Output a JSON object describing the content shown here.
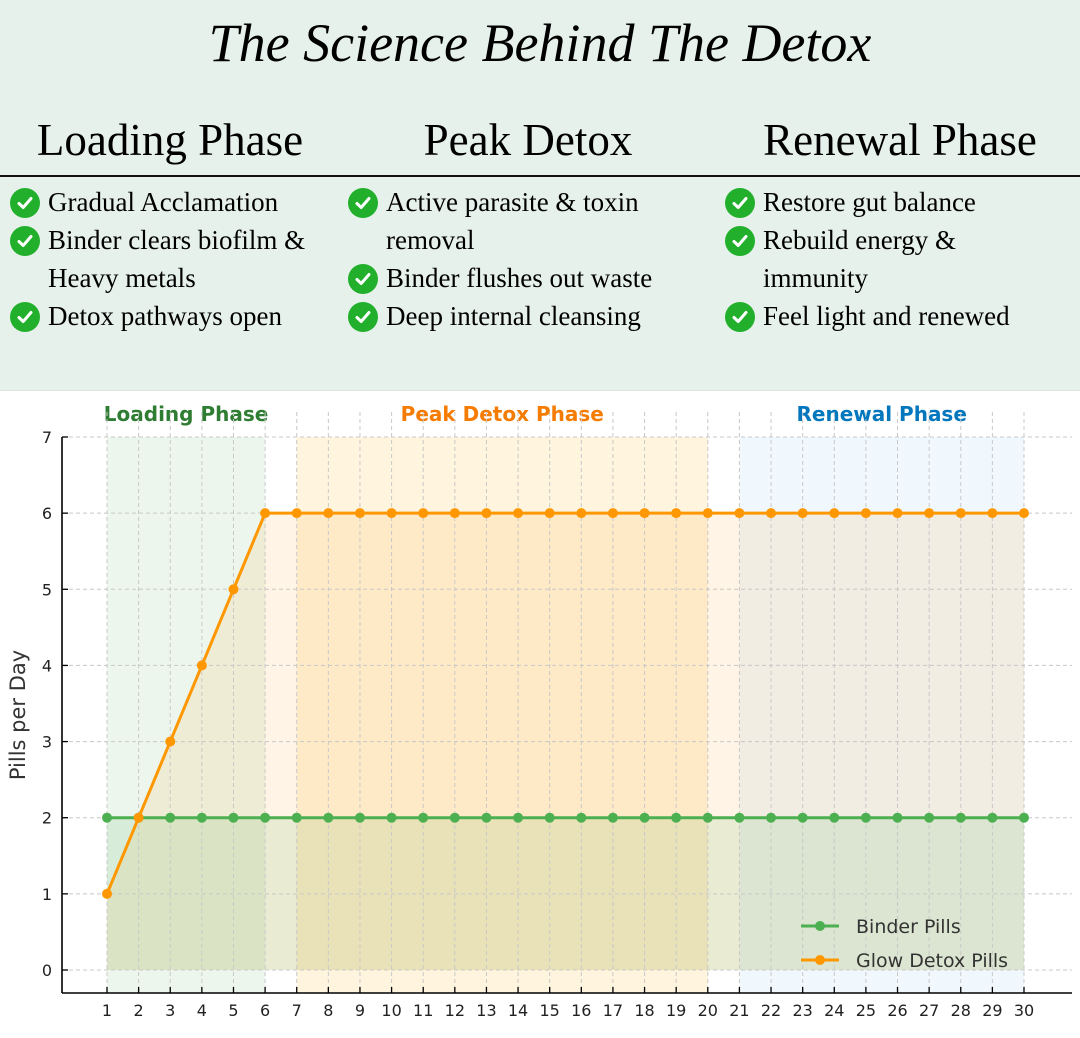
{
  "header": {
    "title": "The Science Behind The Detox",
    "phases": [
      {
        "heading": "Loading Phase",
        "items": [
          "Gradual Acclamation",
          "Binder clears biofilm & Heavy metals",
          "Detox pathways open"
        ]
      },
      {
        "heading": "Peak Detox",
        "items": [
          "Active parasite & toxin removal",
          "Binder flushes out waste",
          "Deep internal cleansing"
        ]
      },
      {
        "heading": "Renewal Phase",
        "items": [
          "Restore gut balance",
          "Rebuild energy & immunity",
          "Feel light and renewed"
        ]
      }
    ],
    "check_icon": "check-circle-icon",
    "check_color": "#22b02c"
  },
  "chart_data": {
    "type": "line",
    "x": [
      1,
      2,
      3,
      4,
      5,
      6,
      7,
      8,
      9,
      10,
      11,
      12,
      13,
      14,
      15,
      16,
      17,
      18,
      19,
      20,
      21,
      22,
      23,
      24,
      25,
      26,
      27,
      28,
      29,
      30
    ],
    "series": [
      {
        "name": "Binder Pills",
        "color": "#4caf50",
        "values": [
          2,
          2,
          2,
          2,
          2,
          2,
          2,
          2,
          2,
          2,
          2,
          2,
          2,
          2,
          2,
          2,
          2,
          2,
          2,
          2,
          2,
          2,
          2,
          2,
          2,
          2,
          2,
          2,
          2,
          2
        ]
      },
      {
        "name": "Glow Detox Pills",
        "color": "#ff9800",
        "values": [
          1,
          2,
          3,
          4,
          5,
          6,
          6,
          6,
          6,
          6,
          6,
          6,
          6,
          6,
          6,
          6,
          6,
          6,
          6,
          6,
          6,
          6,
          6,
          6,
          6,
          6,
          6,
          6,
          6,
          6
        ]
      }
    ],
    "ylabel": "Pills per Day",
    "xlabel": "",
    "xlim": [
      -0.4,
      31.5
    ],
    "ylim": [
      -0.3,
      7
    ],
    "yticks": [
      0,
      1,
      2,
      3,
      4,
      5,
      6,
      7
    ],
    "grid": true,
    "legend": "lower-right",
    "phases": [
      {
        "label": "Loading Phase",
        "start": 1,
        "end": 6,
        "color": "#2e7d32",
        "shade": "#c8e6c9"
      },
      {
        "label": "Peak Detox Phase",
        "start": 7,
        "end": 20,
        "color": "#f57c00",
        "shade": "#ffe0a0"
      },
      {
        "label": "Renewal Phase",
        "start": 21,
        "end": 30,
        "color": "#0277bd",
        "shade": "#d4ecfa"
      }
    ]
  }
}
